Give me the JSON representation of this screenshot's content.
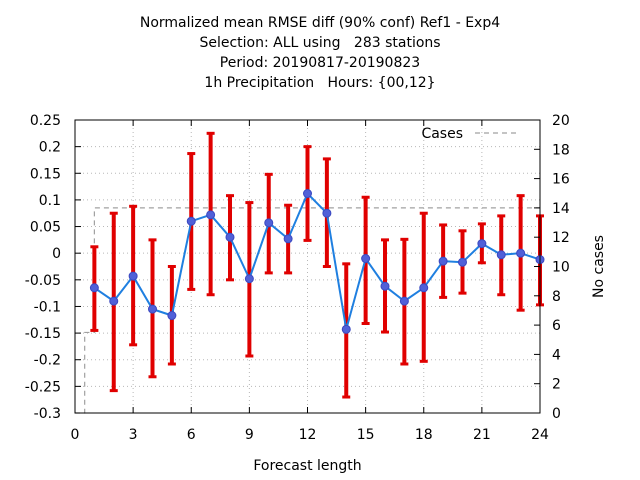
{
  "chart_data": {
    "type": "line",
    "title_lines": [
      "Normalized mean RMSE diff (90% conf) Ref1 - Exp4",
      "Selection: ALL using   283 stations",
      "Period: 20190817-20190823",
      "1h Precipitation   Hours: {00,12}"
    ],
    "xlabel": "Forecast length",
    "ylabel": "",
    "y2label": "No cases",
    "xlim": [
      0,
      24
    ],
    "ylim": [
      -0.3,
      0.25
    ],
    "y2lim": [
      0,
      20
    ],
    "xticks": [
      0,
      3,
      6,
      9,
      12,
      15,
      18,
      21,
      24
    ],
    "yticks": [
      -0.3,
      -0.25,
      -0.2,
      -0.15,
      -0.1,
      -0.05,
      0,
      0.05,
      0.1,
      0.15,
      0.2,
      0.25
    ],
    "y2ticks": [
      0,
      2,
      4,
      6,
      8,
      10,
      12,
      14,
      16,
      18,
      20
    ],
    "grid": true,
    "legend": {
      "position": "top-right",
      "entries": [
        "Cases"
      ]
    },
    "series": [
      {
        "name": "",
        "color": "#1f7fe0",
        "marker_color": "#5060d8",
        "error_color": "#e00000",
        "points": [
          {
            "x": 1,
            "y": -0.065,
            "lo": -0.145,
            "hi": 0.012
          },
          {
            "x": 2,
            "y": -0.09,
            "lo": -0.258,
            "hi": 0.075
          },
          {
            "x": 3,
            "y": -0.043,
            "lo": -0.172,
            "hi": 0.088
          },
          {
            "x": 4,
            "y": -0.105,
            "lo": -0.232,
            "hi": 0.025
          },
          {
            "x": 5,
            "y": -0.117,
            "lo": -0.208,
            "hi": -0.025
          },
          {
            "x": 6,
            "y": 0.06,
            "lo": -0.068,
            "hi": 0.187
          },
          {
            "x": 7,
            "y": 0.072,
            "lo": -0.078,
            "hi": 0.225
          },
          {
            "x": 8,
            "y": 0.03,
            "lo": -0.05,
            "hi": 0.108
          },
          {
            "x": 9,
            "y": -0.048,
            "lo": -0.193,
            "hi": 0.095
          },
          {
            "x": 10,
            "y": 0.057,
            "lo": -0.037,
            "hi": 0.148
          },
          {
            "x": 11,
            "y": 0.027,
            "lo": -0.037,
            "hi": 0.09
          },
          {
            "x": 12,
            "y": 0.112,
            "lo": 0.024,
            "hi": 0.2
          },
          {
            "x": 13,
            "y": 0.075,
            "lo": -0.025,
            "hi": 0.177
          },
          {
            "x": 14,
            "y": -0.143,
            "lo": -0.27,
            "hi": -0.02
          },
          {
            "x": 15,
            "y": -0.01,
            "lo": -0.132,
            "hi": 0.105
          },
          {
            "x": 16,
            "y": -0.062,
            "lo": -0.148,
            "hi": 0.025
          },
          {
            "x": 17,
            "y": -0.09,
            "lo": -0.208,
            "hi": 0.026
          },
          {
            "x": 18,
            "y": -0.065,
            "lo": -0.203,
            "hi": 0.075
          },
          {
            "x": 19,
            "y": -0.015,
            "lo": -0.083,
            "hi": 0.053
          },
          {
            "x": 20,
            "y": -0.017,
            "lo": -0.075,
            "hi": 0.042
          },
          {
            "x": 21,
            "y": 0.018,
            "lo": -0.018,
            "hi": 0.055
          },
          {
            "x": 22,
            "y": -0.003,
            "lo": -0.078,
            "hi": 0.07
          },
          {
            "x": 23,
            "y": 0.0,
            "lo": -0.107,
            "hi": 0.108
          },
          {
            "x": 24,
            "y": -0.012,
            "lo": -0.097,
            "hi": 0.07
          }
        ]
      },
      {
        "name": "Cases",
        "axis": "y2",
        "color": "#a0a0a0",
        "dash": true,
        "x": [
          0,
          0.5,
          0.5,
          1,
          1,
          24
        ],
        "y": [
          0,
          0,
          5.5,
          5.5,
          14,
          14
        ]
      }
    ]
  }
}
